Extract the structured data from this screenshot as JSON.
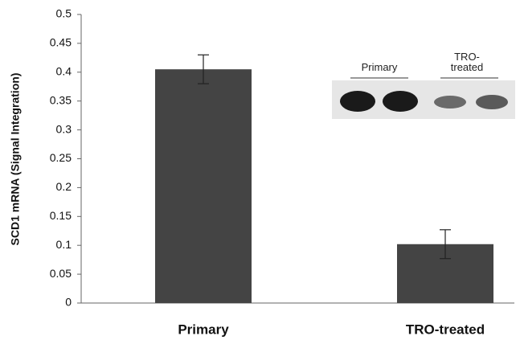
{
  "chart_data": {
    "type": "bar",
    "ylabel": "SCD1 mRNA (Signal Integration)",
    "categories": [
      "Primary",
      "TRO-treated"
    ],
    "values": [
      0.405,
      0.102
    ],
    "errors": [
      0.025,
      0.025
    ],
    "color": "#444444",
    "ylim": [
      0,
      0.5
    ],
    "yticks": [
      0,
      0.05,
      0.1,
      0.15,
      0.2,
      0.25,
      0.3,
      0.35,
      0.4,
      0.45,
      0.5
    ],
    "inset_labels": [
      "Primary",
      "TRO-treated"
    ]
  }
}
